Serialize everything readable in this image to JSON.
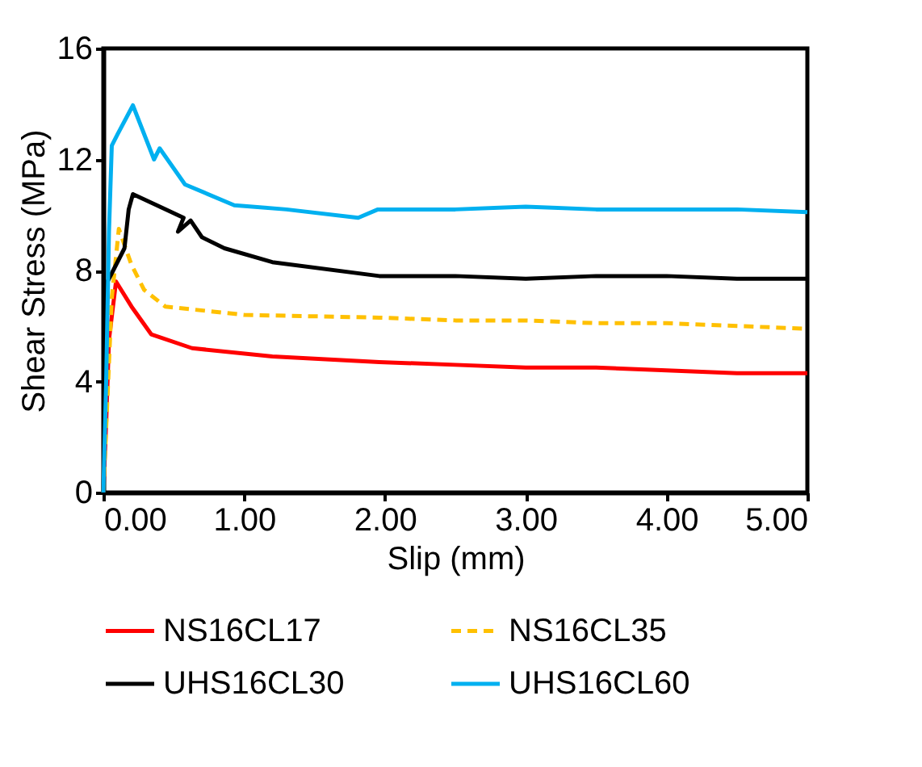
{
  "chart_data": {
    "type": "line",
    "xlabel": "Slip (mm)",
    "ylabel": "Shear Stress (MPa)",
    "xlim": [
      0,
      5
    ],
    "xticks": [
      {
        "value": 0,
        "label": "0.00"
      },
      {
        "value": 1,
        "label": "1.00"
      },
      {
        "value": 2,
        "label": "2.00"
      },
      {
        "value": 3,
        "label": "3.00"
      },
      {
        "value": 4,
        "label": "4.00"
      },
      {
        "value": 5,
        "label": "5.00"
      }
    ],
    "ylim": [
      0,
      16
    ],
    "yticks": [
      0,
      4,
      8,
      12,
      16
    ],
    "grid": false,
    "legend": "bottom",
    "marker": "none",
    "series": [
      {
        "name": "NS16CL17",
        "color": "#ff0000",
        "line_style": "solid",
        "x": [
          0,
          0.02,
          0.04,
          0.09,
          0.2,
          0.34,
          0.63,
          1.2,
          1.96,
          2.5,
          3.0,
          3.5,
          4.0,
          4.5,
          5.0
        ],
        "values": [
          0,
          2.5,
          5.5,
          7.6,
          6.7,
          5.7,
          5.2,
          4.9,
          4.7,
          4.6,
          4.5,
          4.5,
          4.4,
          4.3,
          4.3
        ]
      },
      {
        "name": "NS16CL35",
        "color": "#ffc000",
        "line_style": "dashed",
        "x": [
          0,
          0.03,
          0.06,
          0.11,
          0.2,
          0.29,
          0.44,
          1.0,
          1.96,
          2.5,
          3.0,
          3.5,
          4.0,
          4.5,
          5.0
        ],
        "values": [
          0,
          3.5,
          7.0,
          9.5,
          8.2,
          7.3,
          6.7,
          6.4,
          6.3,
          6.2,
          6.2,
          6.1,
          6.1,
          6.0,
          5.9
        ]
      },
      {
        "name": "UHS16CL30",
        "color": "#000000",
        "line_style": "solid",
        "x": [
          0,
          0.01,
          0.03,
          0.15,
          0.18,
          0.21,
          0.57,
          0.53,
          0.62,
          0.7,
          0.86,
          1.2,
          1.96,
          2.5,
          3.0,
          3.5,
          4.0,
          4.5,
          5.0
        ],
        "values": [
          0,
          3.0,
          7.6,
          8.8,
          10.2,
          10.75,
          9.9,
          9.4,
          9.8,
          9.2,
          8.8,
          8.3,
          7.8,
          7.8,
          7.7,
          7.8,
          7.8,
          7.7,
          7.7
        ]
      },
      {
        "name": "UHS16CL60",
        "color": "#00b0f0",
        "line_style": "solid",
        "x": [
          0,
          0.02,
          0.04,
          0.06,
          0.1,
          0.21,
          0.36,
          0.4,
          0.58,
          0.93,
          1.3,
          1.81,
          1.95,
          2.5,
          3.0,
          3.5,
          4.0,
          4.5,
          5.0
        ],
        "values": [
          0,
          4.0,
          9.4,
          12.5,
          12.9,
          13.95,
          12.0,
          12.4,
          11.1,
          10.35,
          10.2,
          9.9,
          10.2,
          10.2,
          10.3,
          10.2,
          10.2,
          10.2,
          10.1
        ]
      }
    ]
  }
}
